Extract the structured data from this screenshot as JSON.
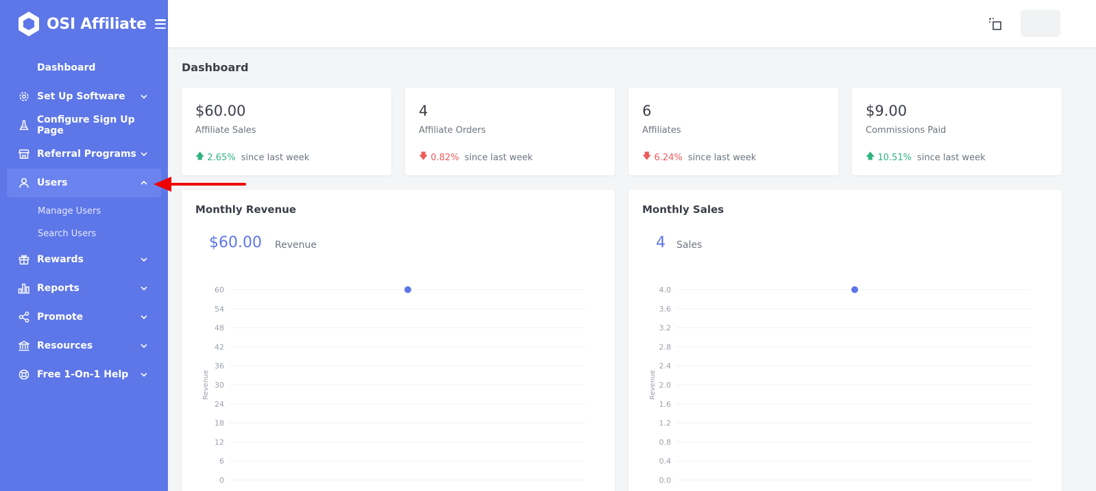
{
  "brand": {
    "name": "OSI Affiliate"
  },
  "sidebar": {
    "items": [
      {
        "label": "Dashboard",
        "icon": "none",
        "has_chevron": false
      },
      {
        "label": "Set Up Software",
        "icon": "gear-icon",
        "has_chevron": true
      },
      {
        "label": "Configure Sign Up Page",
        "icon": "flask-icon",
        "has_chevron": false
      },
      {
        "label": "Referral Programs",
        "icon": "store-icon",
        "has_chevron": true
      },
      {
        "label": "Users",
        "icon": "user-icon",
        "has_chevron": true,
        "expanded": true
      },
      {
        "label": "Rewards",
        "icon": "gift-icon",
        "has_chevron": true
      },
      {
        "label": "Reports",
        "icon": "bar-chart-icon",
        "has_chevron": true
      },
      {
        "label": "Promote",
        "icon": "share-icon",
        "has_chevron": true
      },
      {
        "label": "Resources",
        "icon": "bank-icon",
        "has_chevron": true
      },
      {
        "label": "Free 1-On-1 Help",
        "icon": "lifebuoy-icon",
        "has_chevron": true
      }
    ],
    "users_sub": [
      "Manage Users",
      "Search Users"
    ]
  },
  "page": {
    "title": "Dashboard"
  },
  "stats": [
    {
      "value": "$60.00",
      "caption": "Affiliate Sales",
      "direction": "up",
      "percent": "2.65%",
      "since": "since last week"
    },
    {
      "value": "4",
      "caption": "Affiliate Orders",
      "direction": "down",
      "percent": "0.82%",
      "since": "since last week"
    },
    {
      "value": "6",
      "caption": "Affiliates",
      "direction": "down",
      "percent": "6.24%",
      "since": "since last week"
    },
    {
      "value": "$9.00",
      "caption": "Commissions Paid",
      "direction": "up",
      "percent": "10.51%",
      "since": "since last week"
    }
  ],
  "colors": {
    "sidebar": "#5d76e8",
    "accent": "#5d76e8",
    "up": "#2fb380",
    "down": "#ee5a5a",
    "annotation": "#ee0000"
  },
  "chart_data": [
    {
      "type": "line",
      "title": "Monthly Revenue",
      "headline_value": "$60.00",
      "headline_label": "Revenue",
      "ylabel": "Revenue",
      "ylim": [
        0,
        60
      ],
      "y_ticks": [
        "60",
        "54",
        "48",
        "42",
        "36",
        "30",
        "24",
        "18",
        "12",
        "6",
        "0"
      ],
      "grid": true,
      "points": [
        {
          "y": 60
        }
      ]
    },
    {
      "type": "line",
      "title": "Monthly Sales",
      "headline_value": "4",
      "headline_label": "Sales",
      "ylabel": "Revenue",
      "ylim": [
        0,
        4
      ],
      "y_ticks": [
        "4.0",
        "3.6",
        "3.2",
        "2.8",
        "2.4",
        "2.0",
        "1.6",
        "1.2",
        "0.8",
        "0.4",
        "0.0"
      ],
      "grid": true,
      "points": [
        {
          "y": 4
        }
      ]
    }
  ]
}
